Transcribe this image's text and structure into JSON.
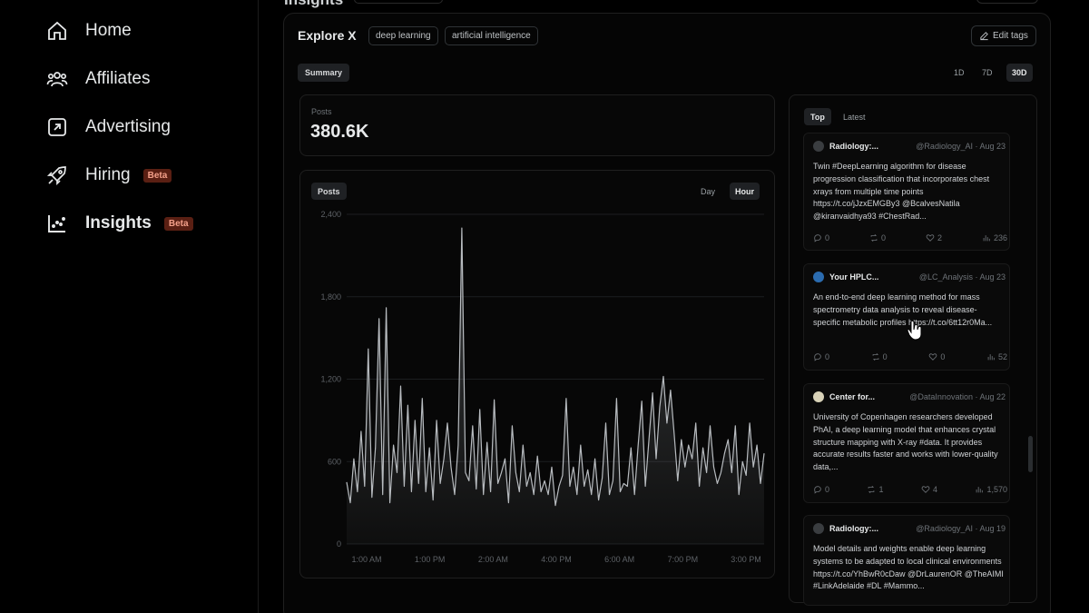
{
  "sidebar": {
    "items": [
      {
        "label": "Home",
        "icon": "home-icon"
      },
      {
        "label": "Affiliates",
        "icon": "affiliates-icon"
      },
      {
        "label": "Advertising",
        "icon": "advertising-icon"
      },
      {
        "label": "Hiring",
        "icon": "rocket-icon",
        "badge": "Beta"
      },
      {
        "label": "Insights",
        "icon": "insights-icon",
        "badge": "Beta",
        "active": true
      }
    ]
  },
  "header": {
    "title": "Insights"
  },
  "explore": {
    "title": "Explore X",
    "tags": [
      "deep learning",
      "artificial intelligence"
    ],
    "edit_tags_label": "Edit tags"
  },
  "summary_label": "Summary",
  "ranges": [
    "1D",
    "7D",
    "30D"
  ],
  "active_range": "30D",
  "stat": {
    "label": "Posts",
    "value": "380.6K"
  },
  "chart": {
    "pill_label": "Posts",
    "granularity": [
      "Day",
      "Hour"
    ],
    "active_granularity": "Hour"
  },
  "chart_data": {
    "type": "area",
    "title": "Posts",
    "xlabel": "",
    "ylabel": "",
    "ylim": [
      0,
      2400
    ],
    "y_ticks": [
      "2,400",
      "1,800",
      "1,200",
      "600",
      "0"
    ],
    "x_ticks": [
      "1:00 AM",
      "1:00 PM",
      "2:00 AM",
      "4:00 PM",
      "6:00 AM",
      "7:00 PM",
      "3:00 PM"
    ],
    "grid": true,
    "series": [
      {
        "values": [
          450,
          300,
          620,
          380,
          820,
          420,
          1420,
          340,
          700,
          1640,
          360,
          1720,
          300,
          720,
          520,
          1150,
          420,
          1010,
          380,
          900,
          440,
          1060,
          380,
          700,
          320,
          900,
          440,
          620,
          880,
          560,
          360,
          720,
          2300,
          520,
          460,
          860,
          400,
          980,
          360,
          740,
          380,
          1050,
          440,
          520,
          620,
          300,
          860,
          520,
          380,
          720,
          420,
          520,
          360,
          640,
          380,
          460,
          360,
          560,
          280,
          420,
          500,
          1060,
          420,
          560,
          360,
          720,
          420,
          540,
          360,
          620,
          320,
          480,
          880,
          360,
          460,
          1060,
          380,
          440,
          420,
          700,
          360,
          720,
          1040,
          420,
          760,
          1100,
          620,
          1000,
          1220,
          880,
          1120,
          800,
          460,
          760,
          560,
          720,
          620,
          880,
          420,
          700,
          520,
          860,
          560,
          440,
          520,
          660,
          760,
          520,
          860,
          360,
          600,
          500,
          880,
          560,
          720,
          440,
          660
        ]
      }
    ]
  },
  "feed": {
    "tabs": [
      "Top",
      "Latest"
    ],
    "active_tab": "Top",
    "posts": [
      {
        "name": "Radiology:...",
        "handle": "@Radiology_AI · Aug 23",
        "text": "Twin #DeepLearning algorithm for disease progression classification that incorporates chest xrays from multiple time points https://t.co/jJzxEMGBy3 @BcalvesNatila @kiranvaidhya93 #ChestRad...",
        "replies": "0",
        "reposts": "0",
        "likes": "2",
        "views": "236"
      },
      {
        "name": "Your HPLC...",
        "handle": "@LC_Analysis · Aug 23",
        "text": "An end-to-end deep learning method for mass spectrometry data analysis to reveal disease-specific metabolic profiles https://t.co/6tt12r0Ma...",
        "replies": "0",
        "reposts": "0",
        "likes": "0",
        "views": "52"
      },
      {
        "name": "Center for...",
        "handle": "@DataInnovation · Aug 22",
        "text": "University of Copenhagen researchers developed PhAI, a deep learning model that enhances crystal structure mapping with X-ray #data. It provides accurate results faster and works with lower-quality data,...",
        "replies": "0",
        "reposts": "1",
        "likes": "4",
        "views": "1,570"
      },
      {
        "name": "Radiology:...",
        "handle": "@Radiology_AI · Aug 19",
        "text": "Model details and weights enable deep learning systems to be adapted to local clinical environments https://t.co/YhBwR0cDaw @DrLaurenOR @TheAIMI #LinkAdelaide #DL #Mammo...",
        "replies": "",
        "reposts": "",
        "likes": "",
        "views": ""
      }
    ]
  }
}
